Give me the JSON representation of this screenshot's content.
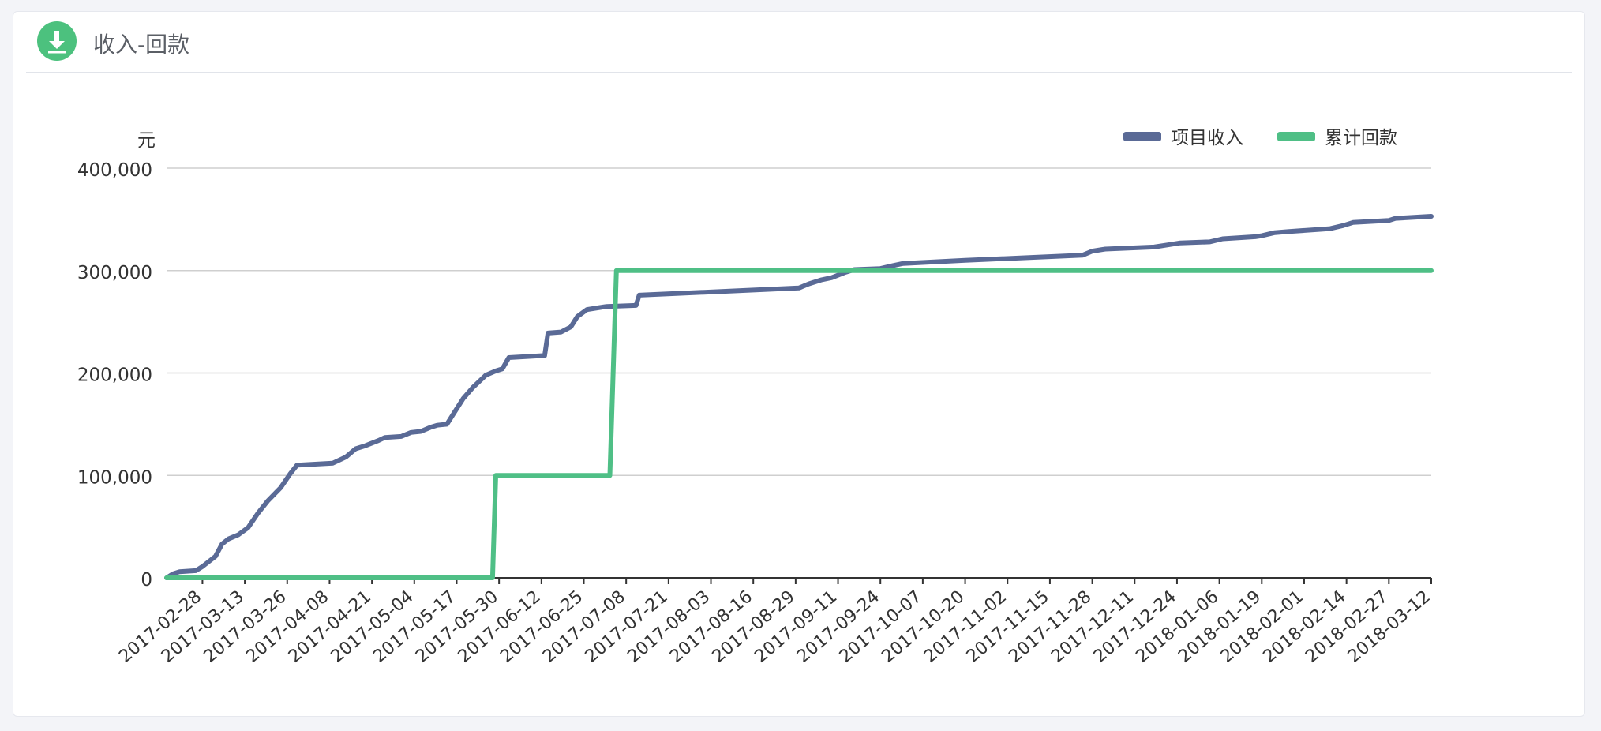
{
  "panel": {
    "title": "收入-回款",
    "icon": "download-icon"
  },
  "colors": {
    "income": "#5a6a96",
    "payment": "#4fbf86",
    "icon_bg": "#4cc17e"
  },
  "chart_data": {
    "type": "line",
    "title": "",
    "ylabel": "元",
    "ylim": [
      0,
      400000
    ],
    "yticks": [
      0,
      100000,
      200000,
      300000,
      400000
    ],
    "ytick_labels": [
      "0",
      "100,000",
      "200,000",
      "300,000",
      "400,000"
    ],
    "xlim": [
      "2017-02-17",
      "2018-03-12"
    ],
    "xticks": [
      "2017-02-28",
      "2017-03-13",
      "2017-03-26",
      "2017-04-08",
      "2017-04-21",
      "2017-05-04",
      "2017-05-17",
      "2017-05-30",
      "2017-06-12",
      "2017-06-25",
      "2017-07-08",
      "2017-07-21",
      "2017-08-03",
      "2017-08-16",
      "2017-08-29",
      "2017-09-11",
      "2017-09-24",
      "2017-10-07",
      "2017-10-20",
      "2017-11-02",
      "2017-11-15",
      "2017-11-28",
      "2017-12-11",
      "2017-12-24",
      "2018-01-06",
      "2018-01-19",
      "2018-02-01",
      "2018-02-14",
      "2018-02-27",
      "2018-03-12"
    ],
    "legend_position": "top-right",
    "grid": true,
    "series": [
      {
        "name": "项目收入",
        "color": "#5a6a96",
        "points": [
          [
            "2017-02-17",
            0
          ],
          [
            "2017-02-19",
            4000
          ],
          [
            "2017-02-21",
            6000
          ],
          [
            "2017-02-26",
            7000
          ],
          [
            "2017-02-28",
            11000
          ],
          [
            "2017-03-02",
            16000
          ],
          [
            "2017-03-04",
            21000
          ],
          [
            "2017-03-06",
            33000
          ],
          [
            "2017-03-08",
            38000
          ],
          [
            "2017-03-11",
            42000
          ],
          [
            "2017-03-14",
            49000
          ],
          [
            "2017-03-17",
            63000
          ],
          [
            "2017-03-20",
            75000
          ],
          [
            "2017-03-24",
            88000
          ],
          [
            "2017-03-27",
            102000
          ],
          [
            "2017-03-29",
            110000
          ],
          [
            "2017-04-09",
            112000
          ],
          [
            "2017-04-13",
            118000
          ],
          [
            "2017-04-16",
            126000
          ],
          [
            "2017-04-19",
            129000
          ],
          [
            "2017-04-23",
            134000
          ],
          [
            "2017-04-25",
            137000
          ],
          [
            "2017-04-30",
            138000
          ],
          [
            "2017-05-03",
            142000
          ],
          [
            "2017-05-06",
            143000
          ],
          [
            "2017-05-09",
            147000
          ],
          [
            "2017-05-11",
            149000
          ],
          [
            "2017-05-14",
            150000
          ],
          [
            "2017-05-16",
            160000
          ],
          [
            "2017-05-19",
            175000
          ],
          [
            "2017-05-22",
            186000
          ],
          [
            "2017-05-26",
            198000
          ],
          [
            "2017-05-29",
            202000
          ],
          [
            "2017-05-31",
            204000
          ],
          [
            "2017-06-02",
            215000
          ],
          [
            "2017-06-13",
            217000
          ],
          [
            "2017-06-14",
            239000
          ],
          [
            "2017-06-18",
            240000
          ],
          [
            "2017-06-21",
            245000
          ],
          [
            "2017-06-23",
            255000
          ],
          [
            "2017-06-26",
            262000
          ],
          [
            "2017-06-30",
            264000
          ],
          [
            "2017-07-02",
            265000
          ],
          [
            "2017-07-11",
            266000
          ],
          [
            "2017-07-12",
            276000
          ],
          [
            "2017-08-30",
            283000
          ],
          [
            "2017-09-02",
            287000
          ],
          [
            "2017-09-06",
            291000
          ],
          [
            "2017-09-09",
            293000
          ],
          [
            "2017-09-13",
            298000
          ],
          [
            "2017-09-16",
            301000
          ],
          [
            "2017-09-24",
            302000
          ],
          [
            "2017-09-28",
            305000
          ],
          [
            "2017-10-01",
            307000
          ],
          [
            "2017-10-20",
            310000
          ],
          [
            "2017-11-25",
            315000
          ],
          [
            "2017-11-28",
            319000
          ],
          [
            "2017-12-02",
            321000
          ],
          [
            "2017-12-17",
            323000
          ],
          [
            "2017-12-21",
            325000
          ],
          [
            "2017-12-25",
            327000
          ],
          [
            "2018-01-03",
            328000
          ],
          [
            "2018-01-07",
            331000
          ],
          [
            "2018-01-17",
            333000
          ],
          [
            "2018-01-19",
            334000
          ],
          [
            "2018-01-23",
            337000
          ],
          [
            "2018-01-27",
            338000
          ],
          [
            "2018-02-09",
            341000
          ],
          [
            "2018-02-13",
            344000
          ],
          [
            "2018-02-16",
            347000
          ],
          [
            "2018-02-27",
            349000
          ],
          [
            "2018-03-01",
            351000
          ],
          [
            "2018-03-12",
            353000
          ]
        ]
      },
      {
        "name": "累计回款",
        "color": "#4fbf86",
        "points": [
          [
            "2017-02-17",
            0
          ],
          [
            "2017-05-28",
            0
          ],
          [
            "2017-05-29",
            100000
          ],
          [
            "2017-07-03",
            100000
          ],
          [
            "2017-07-05",
            300000
          ],
          [
            "2018-03-12",
            300000
          ]
        ]
      }
    ]
  }
}
